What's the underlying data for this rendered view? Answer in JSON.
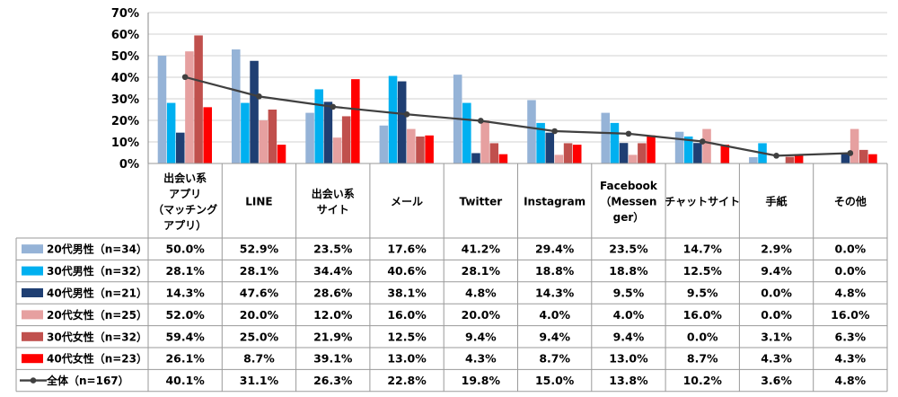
{
  "chart_data": {
    "type": "bar",
    "categories": [
      [
        "出会い系",
        "アプリ",
        "（マッチング",
        "アプリ）"
      ],
      [
        "LINE"
      ],
      [
        "出会い系",
        "サイト"
      ],
      [
        "メール"
      ],
      [
        "Twitter"
      ],
      [
        "Instagram"
      ],
      [
        "Facebook",
        "（Messen",
        "ger）"
      ],
      [
        "チャットサイト"
      ],
      [
        "手紙"
      ],
      [
        "その他"
      ]
    ],
    "ylim": [
      0,
      70
    ],
    "yticks": [
      "0%",
      "10%",
      "20%",
      "30%",
      "40%",
      "50%",
      "60%",
      "70%"
    ],
    "grid": true,
    "series": [
      {
        "name": "20代男性（n=34）",
        "kind": "bar",
        "color": "#95B3D7",
        "values": [
          50.0,
          52.9,
          23.5,
          17.6,
          41.2,
          29.4,
          23.5,
          14.7,
          2.9,
          0.0
        ],
        "labels": [
          "50.0%",
          "52.9%",
          "23.5%",
          "17.6%",
          "41.2%",
          "29.4%",
          "23.5%",
          "14.7%",
          "2.9%",
          "0.0%"
        ]
      },
      {
        "name": "30代男性（n=32）",
        "kind": "bar",
        "color": "#00B0F0",
        "values": [
          28.1,
          28.1,
          34.4,
          40.6,
          28.1,
          18.8,
          18.8,
          12.5,
          9.4,
          0.0
        ],
        "labels": [
          "28.1%",
          "28.1%",
          "34.4%",
          "40.6%",
          "28.1%",
          "18.8%",
          "18.8%",
          "12.5%",
          "9.4%",
          "0.0%"
        ]
      },
      {
        "name": "40代男性（n=21）",
        "kind": "bar",
        "color": "#1F3F73",
        "values": [
          14.3,
          47.6,
          28.6,
          38.1,
          4.8,
          14.3,
          9.5,
          9.5,
          0.0,
          4.8
        ],
        "labels": [
          "14.3%",
          "47.6%",
          "28.6%",
          "38.1%",
          "4.8%",
          "14.3%",
          "9.5%",
          "9.5%",
          "0.0%",
          "4.8%"
        ]
      },
      {
        "name": "20代女性（n=25）",
        "kind": "bar",
        "color": "#E6A0A0",
        "values": [
          52.0,
          20.0,
          12.0,
          16.0,
          20.0,
          4.0,
          4.0,
          16.0,
          0.0,
          16.0
        ],
        "labels": [
          "52.0%",
          "20.0%",
          "12.0%",
          "16.0%",
          "20.0%",
          "4.0%",
          "4.0%",
          "16.0%",
          "0.0%",
          "16.0%"
        ]
      },
      {
        "name": "30代女性（n=32）",
        "kind": "bar",
        "color": "#C0504D",
        "values": [
          59.4,
          25.0,
          21.9,
          12.5,
          9.4,
          9.4,
          9.4,
          0.0,
          3.1,
          6.3
        ],
        "labels": [
          "59.4%",
          "25.0%",
          "21.9%",
          "12.5%",
          "9.4%",
          "9.4%",
          "9.4%",
          "0.0%",
          "3.1%",
          "6.3%"
        ]
      },
      {
        "name": "40代女性（n=23）",
        "kind": "bar",
        "color": "#FF0000",
        "values": [
          26.1,
          8.7,
          39.1,
          13.0,
          4.3,
          8.7,
          13.0,
          8.7,
          4.3,
          4.3
        ],
        "labels": [
          "26.1%",
          "8.7%",
          "39.1%",
          "13.0%",
          "4.3%",
          "8.7%",
          "13.0%",
          "8.7%",
          "4.3%",
          "4.3%"
        ]
      },
      {
        "name": "全体（n=167）",
        "kind": "line",
        "color": "#404040",
        "values": [
          40.1,
          31.1,
          26.3,
          22.8,
          19.8,
          15.0,
          13.8,
          10.2,
          3.6,
          4.8
        ],
        "labels": [
          "40.1%",
          "31.1%",
          "26.3%",
          "22.8%",
          "19.8%",
          "15.0%",
          "13.8%",
          "10.2%",
          "3.6%",
          "4.8%"
        ]
      }
    ]
  },
  "colors": {
    "grid": "#D0D0D0",
    "table_border": "#9A9A9A"
  }
}
